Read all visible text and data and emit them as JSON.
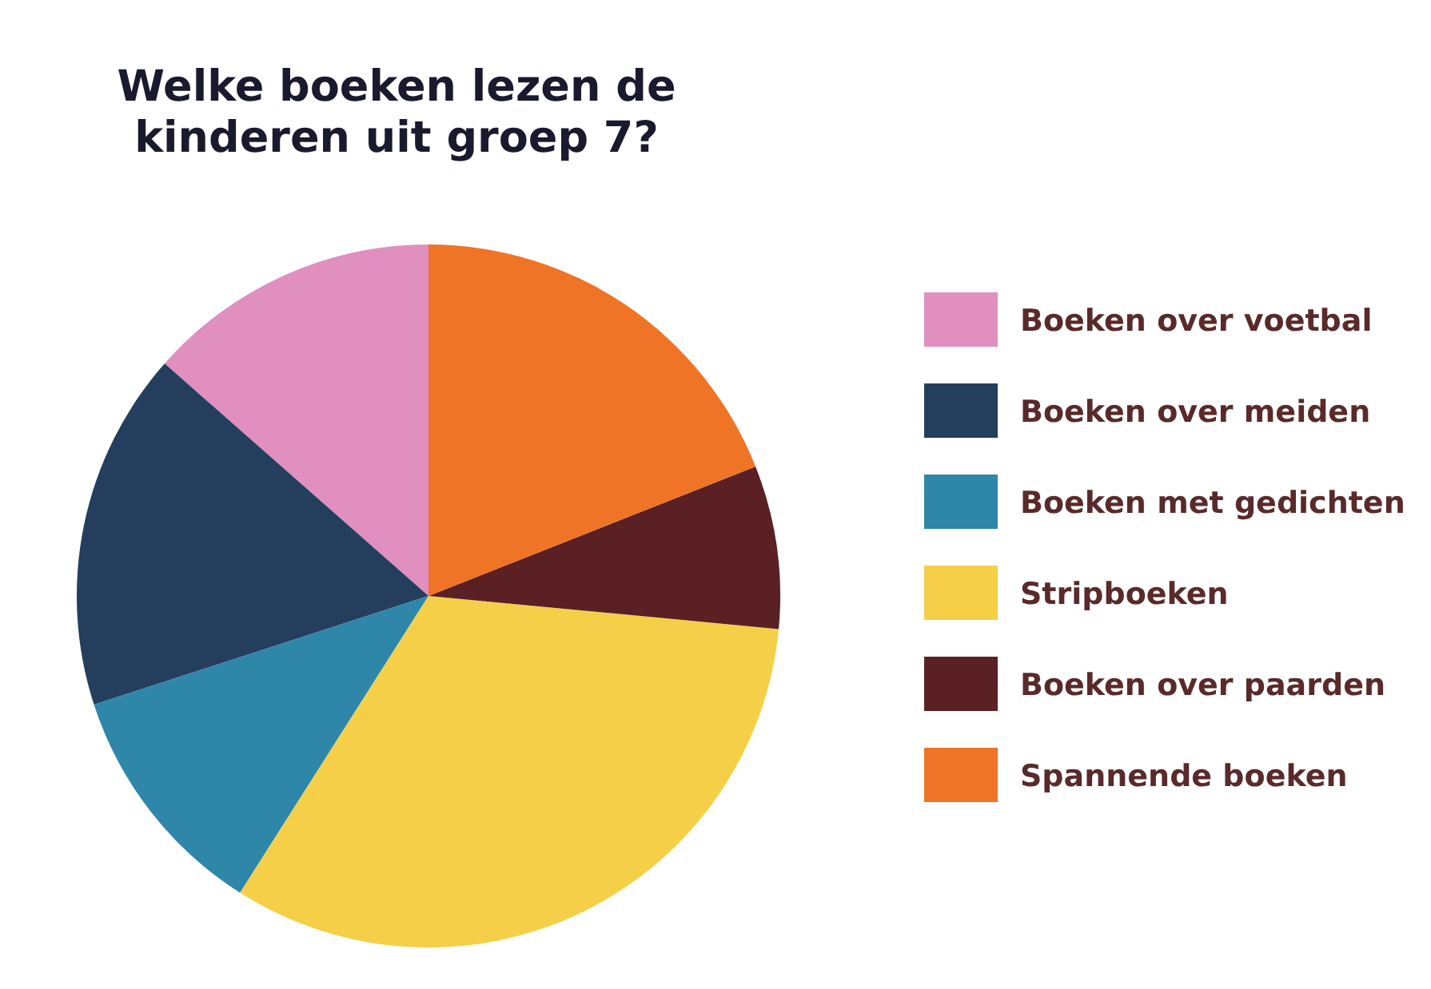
{
  "chart_data": {
    "type": "pie",
    "title": "Welke boeken lezen de kinderen uit groep 7?",
    "categories": [
      "Boeken over voetbal",
      "Boeken over meiden",
      "Boeken met gedichten",
      "Stripboeken",
      "Boeken over paarden",
      "Spannende boeken"
    ],
    "values": [
      13.5,
      16.5,
      11,
      32.5,
      7.5,
      19
    ],
    "colors": [
      "#e08fbf",
      "#243f5e",
      "#2e86a8",
      "#f5cf48",
      "#5a2024",
      "#ef7425"
    ],
    "legend": "right"
  }
}
